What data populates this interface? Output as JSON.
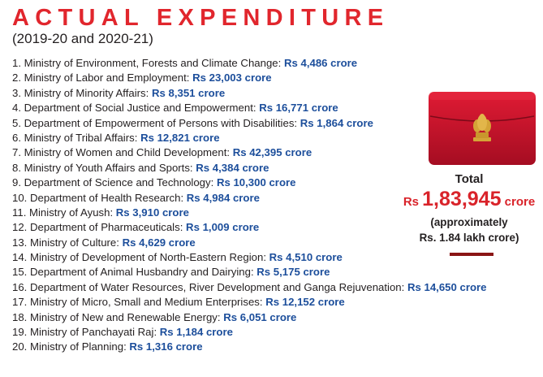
{
  "header": {
    "title": "ACTUAL EXPENDITURE",
    "subtitle": "(2019-20 and 2020-21)"
  },
  "items": [
    {
      "label": "1. Ministry of Environment, Forests and Climate Change: ",
      "amount": "Rs 4,486 crore"
    },
    {
      "label": "2. Ministry of Labor and Employment: ",
      "amount": "Rs 23,003 crore"
    },
    {
      "label": "3. Ministry of Minority Affairs: ",
      "amount": "Rs 8,351 crore"
    },
    {
      "label": "4. Department of Social Justice and Empowerment: ",
      "amount": "Rs 16,771 crore"
    },
    {
      "label": "5. Department of Empowerment of Persons with Disabilities: ",
      "amount": "Rs 1,864 crore"
    },
    {
      "label": "6. Ministry of Tribal Affairs: ",
      "amount": "Rs 12,821 crore"
    },
    {
      "label": "7. Ministry of Women and Child Development: ",
      "amount": "Rs 42,395 crore"
    },
    {
      "label": "8. Ministry of Youth Affairs and Sports: ",
      "amount": "Rs 4,384 crore"
    },
    {
      "label": "9. Department of Science and Technology: ",
      "amount": "Rs 10,300 crore"
    },
    {
      "label": "10. Department of Health Research: ",
      "amount": "Rs 4,984 crore"
    },
    {
      "label": "11. Ministry of Ayush: ",
      "amount": "Rs 3,910 crore"
    },
    {
      "label": "12. Department of Pharmaceuticals: ",
      "amount": "Rs 1,009 crore"
    },
    {
      "label": "13. Ministry of Culture: ",
      "amount": "Rs 4,629 crore"
    },
    {
      "label": "14. Ministry of Development of North-Eastern Region: ",
      "amount": "Rs 4,510 crore"
    },
    {
      "label": "15. Department of Animal Husbandry and Dairying: ",
      "amount": "Rs 5,175 crore"
    },
    {
      "label": "16. Department of Water Resources, River Development and Ganga Rejuvenation: ",
      "amount": "Rs 14,650 crore"
    },
    {
      "label": "17. Ministry of Micro, Small and Medium Enterprises: ",
      "amount": "Rs 12,152 crore"
    },
    {
      "label": "18. Ministry of New and Renewable Energy: ",
      "amount": "Rs 6,051 crore"
    },
    {
      "label": "19. Ministry of Panchayati Raj: ",
      "amount": "Rs 1,184 crore"
    },
    {
      "label": "20. Ministry of Planning: ",
      "amount": "Rs 1,316 crore"
    }
  ],
  "total": {
    "label": "Total",
    "prefix": "Rs ",
    "value": "1,83,945",
    "unit": " crore",
    "note_line1": "(approximately",
    "note_line2": "Rs. 1.84 lakh crore)"
  },
  "graphic": {
    "icon": "red-briefcase-with-emblem-icon",
    "briefcase_color": "#c8102e",
    "emblem_color": "#d4a437"
  },
  "colors": {
    "title": "#e1262d",
    "amount": "#1c4e9b",
    "total_value": "#d9232a",
    "text": "#231f20",
    "accent_bar": "#8a1515"
  }
}
